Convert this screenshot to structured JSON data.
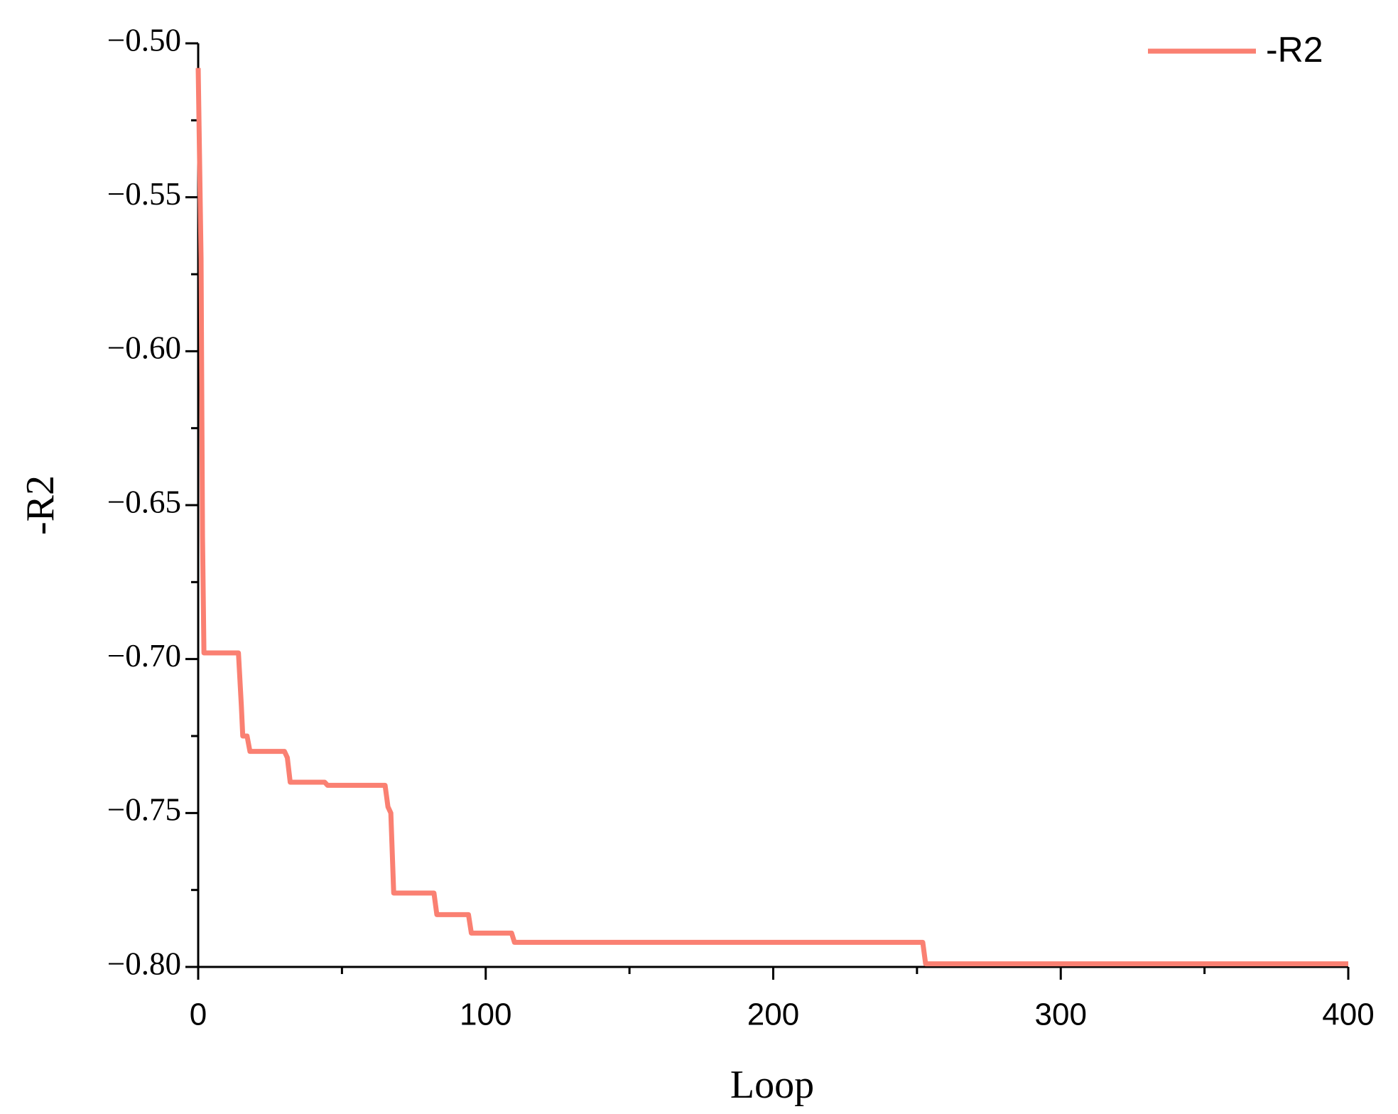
{
  "chart_data": {
    "type": "line",
    "xlabel": "Loop",
    "ylabel": "-R2",
    "x": [
      0,
      1,
      1.5,
      2,
      14,
      15,
      15.5,
      17,
      18,
      30,
      31,
      32,
      44,
      45,
      65,
      66,
      67,
      68,
      82,
      83,
      94,
      95,
      109,
      110,
      252,
      253,
      400
    ],
    "series": [
      {
        "name": "-R2",
        "color": "#fa8072",
        "values": [
          -0.508,
          -0.57,
          -0.66,
          -0.698,
          -0.698,
          -0.715,
          -0.725,
          -0.725,
          -0.73,
          -0.73,
          -0.732,
          -0.74,
          -0.74,
          -0.741,
          -0.741,
          -0.748,
          -0.75,
          -0.776,
          -0.776,
          -0.783,
          -0.783,
          -0.789,
          -0.789,
          -0.792,
          -0.792,
          -0.799,
          -0.799
        ]
      }
    ],
    "xlim": [
      0,
      400
    ],
    "xticks": [
      0,
      100,
      200,
      300,
      400
    ],
    "ylim": [
      -0.8,
      -0.5
    ],
    "yticks": [
      {
        "value": -0.8,
        "label": "−0.80"
      },
      {
        "value": -0.75,
        "label": "−0.75"
      },
      {
        "value": -0.7,
        "label": "−0.70"
      },
      {
        "value": -0.65,
        "label": "−0.65"
      },
      {
        "value": -0.6,
        "label": "−0.60"
      },
      {
        "value": -0.55,
        "label": "−0.55"
      },
      {
        "value": -0.5,
        "label": "−0.50"
      }
    ],
    "grid": false,
    "legend": "upper right"
  }
}
